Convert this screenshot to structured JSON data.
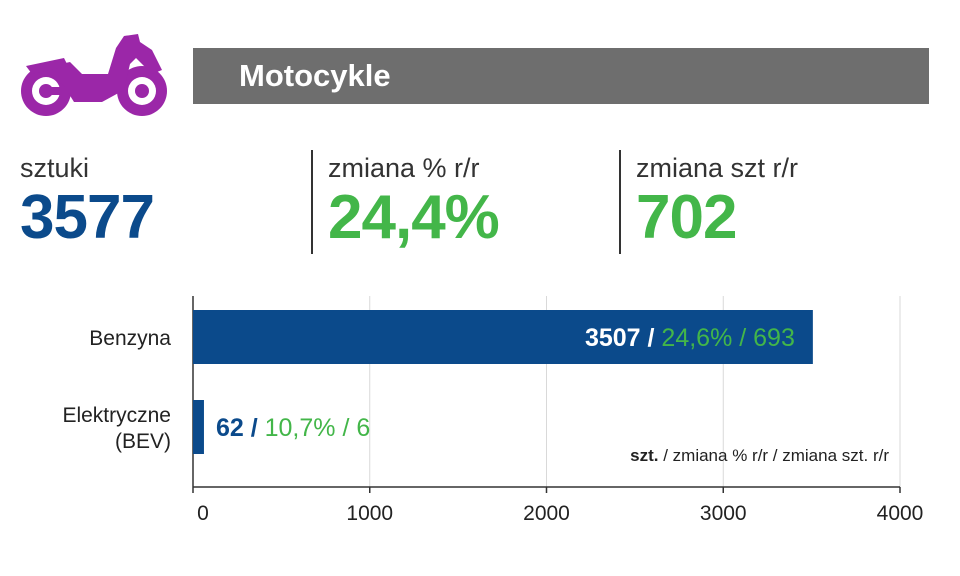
{
  "header": {
    "title": "Motocykle",
    "icon": "motorcycle-icon",
    "bar_color": "#6e6e6e",
    "icon_color": "#9b27a8"
  },
  "stats": [
    {
      "label": "sztuki",
      "value": "3577",
      "color": "#0b4a8b"
    },
    {
      "label": "zmiana % r/r",
      "value": "24,4%",
      "color": "#43b649"
    },
    {
      "label": "zmiana szt r/r",
      "value": "702",
      "color": "#43b649"
    }
  ],
  "chart_data": {
    "type": "bar",
    "orientation": "horizontal",
    "categories": [
      "Benzyna",
      "Elektryczne\n(BEV)"
    ],
    "values": [
      3507,
      62
    ],
    "data_labels": [
      {
        "count": "3507",
        "sep": " / ",
        "rest": "24,6% / 693"
      },
      {
        "count": "62",
        "sep": " / ",
        "rest": "10,7% / 6"
      }
    ],
    "xlim": [
      0,
      4000
    ],
    "xticks": [
      0,
      1000,
      2000,
      3000,
      4000
    ],
    "grid": true,
    "annotation_bold": "szt.",
    "annotation_rest": " / zmiana % r/r / zmiana szt. r/r",
    "bar_color": "#0b4a8b",
    "accent_color": "#43b649"
  }
}
